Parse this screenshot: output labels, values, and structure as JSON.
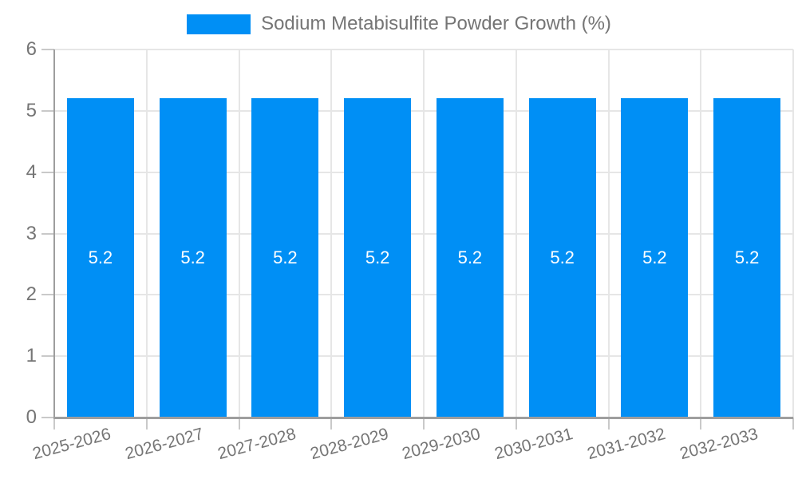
{
  "legend": {
    "series_label": "Sodium Metabisulfite Powder Growth (%)"
  },
  "chart_data": {
    "type": "bar",
    "title": "Sodium Metabisulfite Powder Growth (%)",
    "categories": [
      "2025-2026",
      "2026-2027",
      "2027-2028",
      "2028-2029",
      "2029-2030",
      "2030-2031",
      "2031-2032",
      "2032-2033"
    ],
    "values": [
      5.2,
      5.2,
      5.2,
      5.2,
      5.2,
      5.2,
      5.2,
      5.2
    ],
    "bar_labels": [
      "5.2",
      "5.2",
      "5.2",
      "5.2",
      "5.2",
      "5.2",
      "5.2",
      "5.2"
    ],
    "xlabel": "",
    "ylabel": "",
    "ylim": [
      0,
      6
    ],
    "yticks": [
      0,
      1,
      2,
      3,
      4,
      5,
      6
    ],
    "grid": true,
    "legend_position": "top",
    "xlabel_rotation_deg": -15,
    "colors": {
      "bar": "#008FF5",
      "bar_label": "#FFFFFF",
      "axis": "#9E9E9E",
      "grid": "#E6E6E6",
      "tick": "#C9C9C9",
      "text": "#757575"
    }
  }
}
